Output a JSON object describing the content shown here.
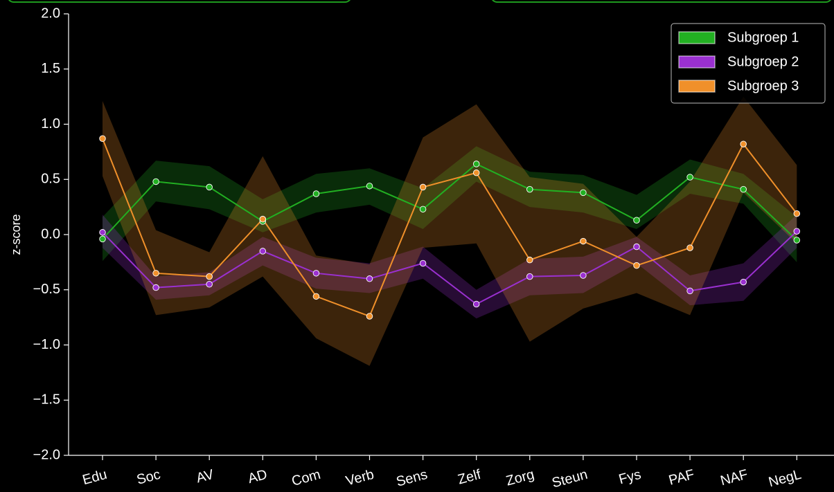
{
  "chart_data": {
    "type": "line",
    "title": "",
    "xlabel": "",
    "ylabel": "z-score",
    "ylim": [
      -2.0,
      2.0
    ],
    "yticks": [
      "2.0",
      "1.5",
      "1.0",
      "0.5",
      "0.0",
      "−0.5",
      "−1.0",
      "−1.5",
      "−2.0"
    ],
    "ytick_values": [
      2.0,
      1.5,
      1.0,
      0.5,
      0.0,
      -0.5,
      -1.0,
      -1.5,
      -2.0
    ],
    "categories": [
      "Edu",
      "Soc",
      "AV",
      "AD",
      "Com",
      "Verb",
      "Sens",
      "Zelf",
      "Zorg",
      "Steun",
      "Fys",
      "PAF",
      "NAF",
      "NegL"
    ],
    "grid": false,
    "legend_position": "top-right",
    "series": [
      {
        "name": "Subgroep 1",
        "color": "#22b022",
        "values": [
          -0.04,
          0.48,
          0.43,
          0.12,
          0.37,
          0.44,
          0.23,
          0.64,
          0.41,
          0.38,
          0.13,
          0.52,
          0.41,
          -0.05
        ],
        "lower": [
          -0.24,
          0.3,
          0.23,
          0.02,
          0.2,
          0.27,
          0.05,
          0.48,
          0.25,
          0.2,
          0.05,
          0.37,
          0.28,
          -0.25
        ],
        "upper": [
          0.16,
          0.67,
          0.62,
          0.32,
          0.55,
          0.6,
          0.42,
          0.8,
          0.57,
          0.54,
          0.36,
          0.68,
          0.55,
          0.16
        ]
      },
      {
        "name": "Subgroep 2",
        "color": "#9a30d0",
        "values": [
          0.02,
          -0.48,
          -0.45,
          -0.15,
          -0.35,
          -0.4,
          -0.26,
          -0.63,
          -0.38,
          -0.37,
          -0.11,
          -0.51,
          -0.43,
          0.03
        ],
        "lower": [
          -0.12,
          -0.59,
          -0.55,
          -0.28,
          -0.49,
          -0.53,
          -0.4,
          -0.76,
          -0.55,
          -0.53,
          -0.26,
          -0.64,
          -0.6,
          -0.12
        ],
        "upper": [
          0.18,
          -0.38,
          -0.34,
          -0.02,
          -0.21,
          -0.26,
          -0.11,
          -0.5,
          -0.22,
          -0.2,
          -0.02,
          -0.37,
          -0.26,
          0.18
        ]
      },
      {
        "name": "Subgroep 3",
        "color": "#f0902a",
        "values": [
          0.87,
          -0.35,
          -0.38,
          0.14,
          -0.56,
          -0.74,
          0.43,
          0.56,
          -0.23,
          -0.06,
          -0.28,
          -0.12,
          0.82,
          0.19
        ],
        "lower": [
          0.53,
          -0.73,
          -0.66,
          -0.38,
          -0.94,
          -1.19,
          -0.12,
          -0.08,
          -0.97,
          -0.67,
          -0.53,
          -0.73,
          0.38,
          -0.08
        ],
        "upper": [
          1.21,
          0.04,
          -0.16,
          0.71,
          -0.19,
          -0.27,
          0.88,
          1.18,
          0.52,
          0.46,
          -0.02,
          0.48,
          1.25,
          0.63
        ]
      }
    ]
  }
}
